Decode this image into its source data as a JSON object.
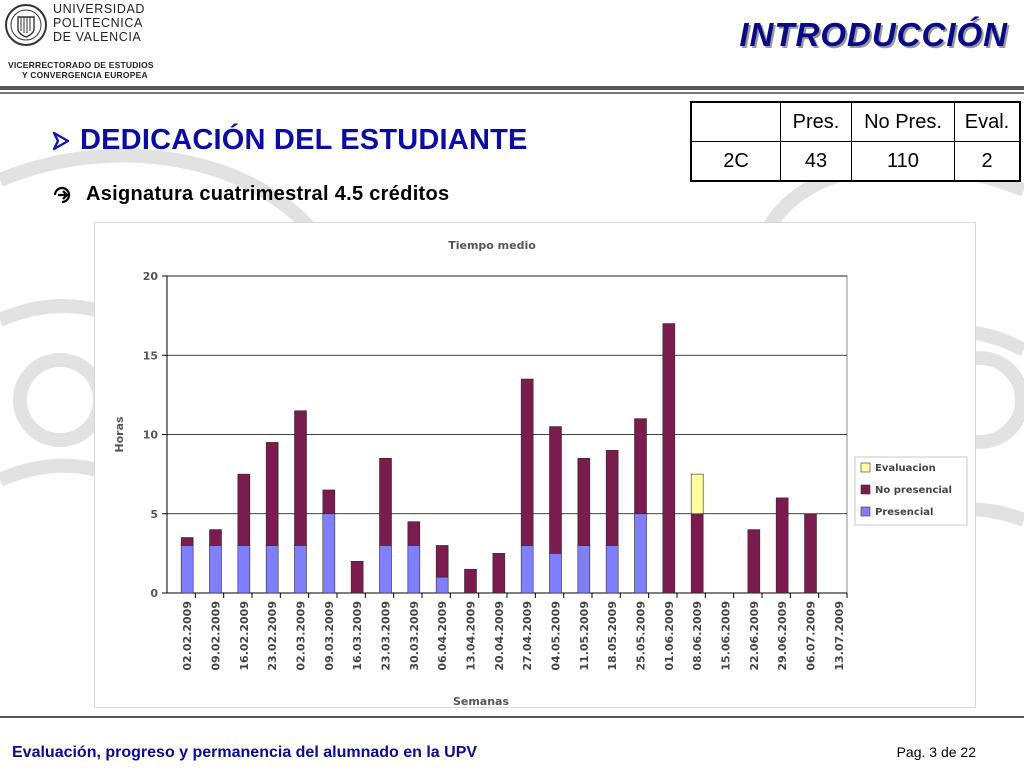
{
  "header": {
    "university_line1": "UNIVERSIDAD",
    "university_line2": "POLITECNICA",
    "university_line3": "DE  VALENCIA",
    "vicerrectorado_line1": "VICERRECTORADO DE ESTUDIOS",
    "vicerrectorado_line2": "Y CONVERGENCIA EUROPEA",
    "title": "INTRODUCCIÓN"
  },
  "heading": {
    "bullet_icon": "arrow-right-icon",
    "text": "DEDICACIÓN DEL ESTUDIANTE"
  },
  "subheading": {
    "bullet_icon": "circled-arrow-icon",
    "text": "Asignatura cuatrimestral 4.5 créditos"
  },
  "stats_table": {
    "headers": [
      "",
      "Pres.",
      "No Pres.",
      "Eval."
    ],
    "row": [
      "2C",
      "43",
      "110",
      "2"
    ]
  },
  "colors": {
    "title": "#0a0a86",
    "presencial": "#8080ff",
    "no_presencial": "#7a1c4e",
    "evaluacion": "#ffffa0"
  },
  "chart_data": {
    "type": "bar",
    "stacked": true,
    "title": "Tiempo medio",
    "xlabel": "Semanas",
    "ylabel": "Horas",
    "ylim": [
      0,
      20
    ],
    "yticks": [
      0,
      5,
      10,
      15,
      20
    ],
    "grid": true,
    "legend_position": "right",
    "categories": [
      "02.02.2009",
      "09.02.2009",
      "16.02.2009",
      "23.02.2009",
      "02.03.2009",
      "09.03.2009",
      "16.03.2009",
      "23.03.2009",
      "30.03.2009",
      "06.04.2009",
      "13.04.2009",
      "20.04.2009",
      "27.04.2009",
      "04.05.2009",
      "11.05.2009",
      "18.05.2009",
      "25.05.2009",
      "01.06.2009",
      "08.06.2009",
      "15.06.2009",
      "22.06.2009",
      "29.06.2009",
      "06.07.2009",
      "13.07.2009"
    ],
    "series": [
      {
        "name": "Presencial",
        "color": "#8080ff",
        "values": [
          3,
          3,
          3,
          3,
          3,
          5,
          0,
          3,
          3,
          1,
          0,
          0,
          3,
          2.5,
          3,
          3,
          5,
          0,
          0,
          0,
          0,
          0,
          0,
          0
        ]
      },
      {
        "name": "No presencial",
        "color": "#7a1c4e",
        "values": [
          0.5,
          1,
          4.5,
          6.5,
          8.5,
          1.5,
          2,
          5.5,
          1.5,
          2,
          1.5,
          2.5,
          10.5,
          8,
          5.5,
          6,
          6,
          17,
          5,
          0,
          4,
          6,
          5,
          0
        ]
      },
      {
        "name": "Evaluacion",
        "color": "#ffffa0",
        "values": [
          0,
          0,
          0,
          0,
          0,
          0,
          0,
          0,
          0,
          0,
          0,
          0,
          0,
          0,
          0,
          0,
          0,
          0,
          2.5,
          0,
          0,
          0,
          0,
          0
        ]
      }
    ],
    "legend_order": [
      "Evaluacion",
      "No presencial",
      "Presencial"
    ]
  },
  "footer": {
    "left": "Evaluación, progreso y permanencia del alumnado en la UPV",
    "right": "Pag. 3 de 22"
  }
}
